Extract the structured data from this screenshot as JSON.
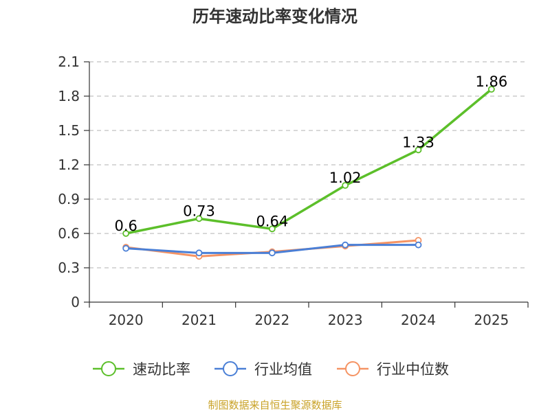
{
  "chart_data": {
    "type": "line",
    "title": "历年速动比率变化情况",
    "categories": [
      "2020",
      "2021",
      "2022",
      "2023",
      "2024",
      "2025"
    ],
    "y_ticks": [
      "0",
      "0.3",
      "0.6",
      "0.9",
      "1.2",
      "1.5",
      "1.8",
      "2.1"
    ],
    "ylim": [
      0,
      2.1
    ],
    "grid": true,
    "legend_position": "bottom",
    "series": [
      {
        "name": "速动比率",
        "color": "#5cbf2a",
        "values": [
          0.6,
          0.73,
          0.64,
          1.02,
          1.33,
          1.86
        ],
        "labels": [
          "0.6",
          "0.73",
          "0.64",
          "1.02",
          "1.33",
          "1.86"
        ]
      },
      {
        "name": "行业均值",
        "color": "#4a7fd6",
        "values": [
          0.47,
          0.43,
          0.43,
          0.5,
          0.5,
          null
        ]
      },
      {
        "name": "行业中位数",
        "color": "#f59363",
        "values": [
          0.48,
          0.4,
          0.44,
          0.49,
          0.54,
          null
        ]
      }
    ],
    "source": "制图数据来自恒生聚源数据库"
  }
}
